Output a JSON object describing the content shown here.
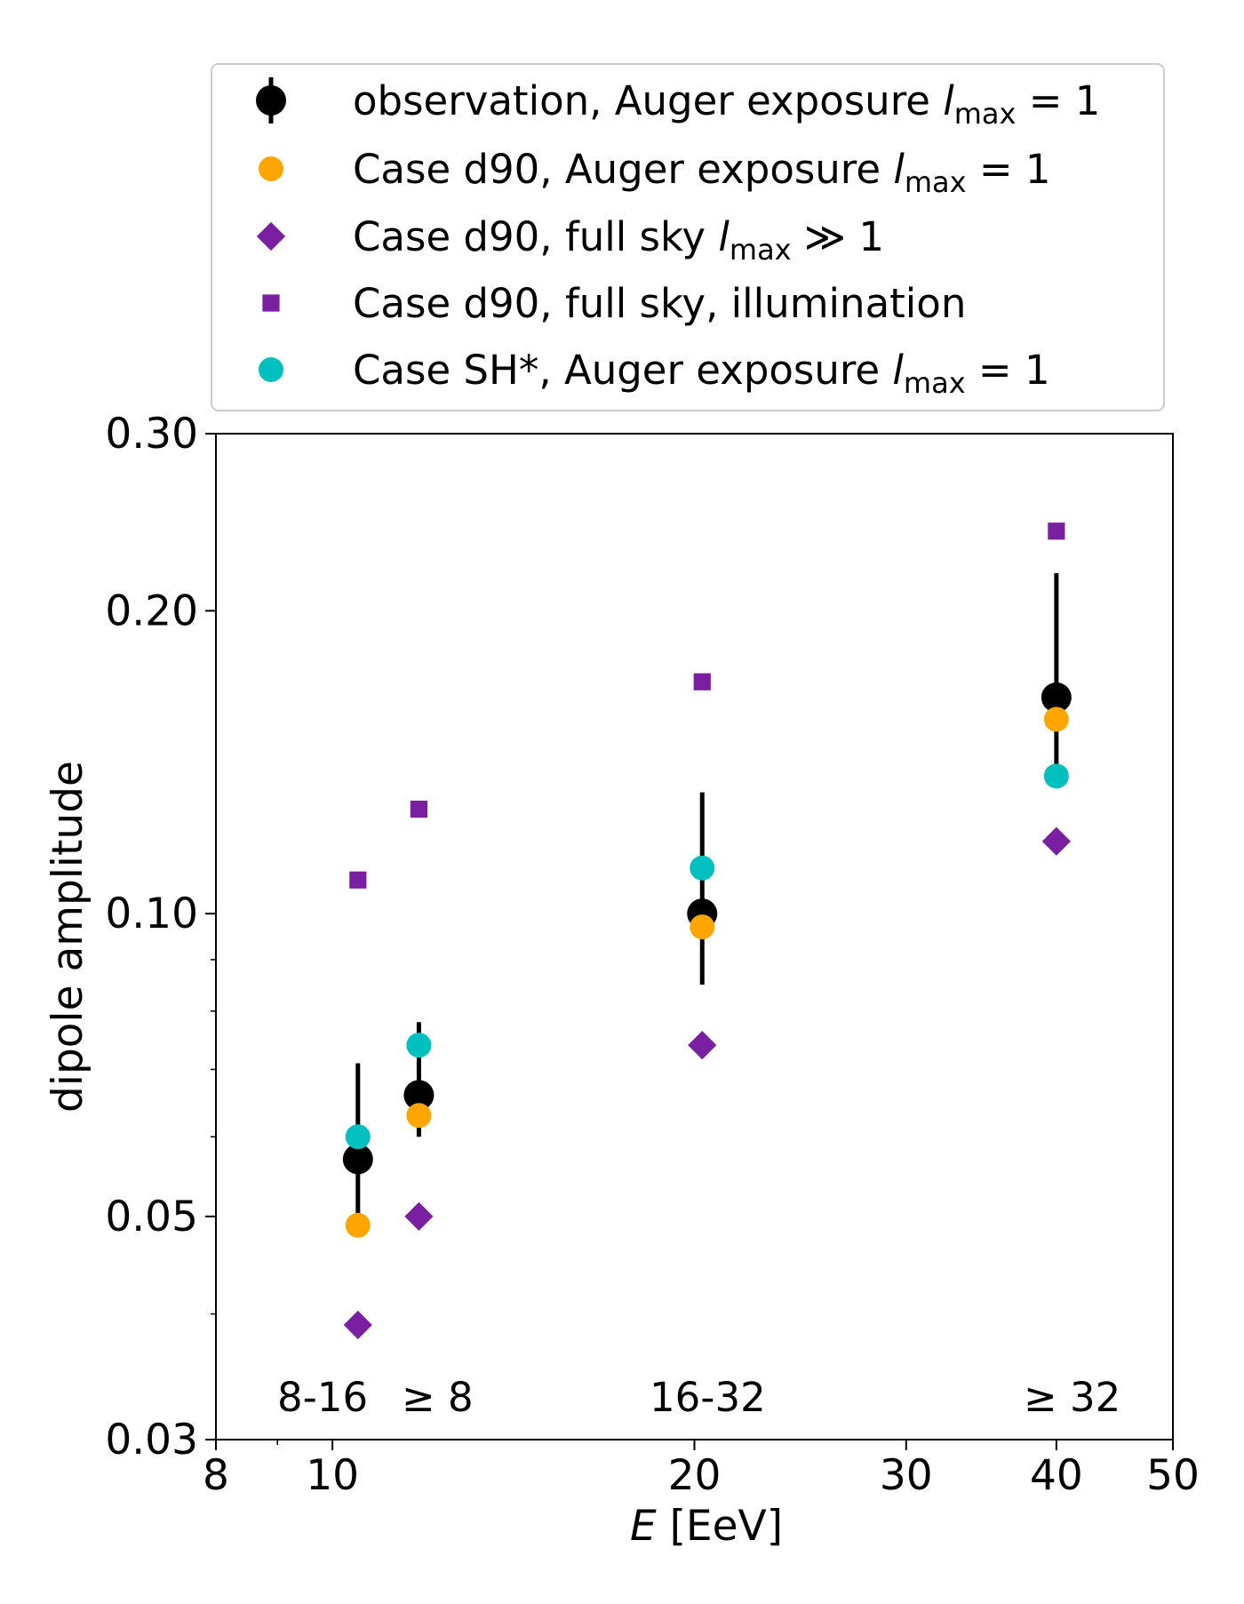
{
  "chart_data": {
    "type": "scatter",
    "title": "",
    "xlabel": {
      "var": "E",
      "unit": " [EeV]"
    },
    "ylabel": "dipole amplitude",
    "xscale": "log",
    "yscale": "log",
    "xlim": [
      8,
      50
    ],
    "ylim": [
      0.03,
      0.3
    ],
    "xticks": [
      8,
      10,
      20,
      30,
      40,
      50
    ],
    "xtick_labels": [
      "8",
      "10",
      "20",
      "30",
      "40",
      "50"
    ],
    "yticks": [
      0.03,
      0.05,
      0.1,
      0.2,
      0.3
    ],
    "ytick_labels": [
      "0.03",
      "0.05",
      "0.10",
      "0.20",
      "0.30"
    ],
    "y_minor_ticks": [
      0.04,
      0.06,
      0.07,
      0.08,
      0.09
    ],
    "x_minor_ticks": [
      9
    ],
    "grid": false,
    "legend_position": "top (above plot)",
    "energy_bins": [
      "8-16",
      "≥ 8",
      "16-32",
      "≥ 32"
    ],
    "series": [
      {
        "name": "observation, Auger exposure",
        "lmax_suffix": "= 1",
        "marker": "circle-errorbar",
        "color": "#000000",
        "x": [
          10.5,
          11.8,
          20.3,
          40.0
        ],
        "y": [
          0.057,
          0.066,
          0.1,
          0.164
        ],
        "yerr_low": [
          0.05,
          0.06,
          0.085,
          0.135
        ],
        "yerr_high": [
          0.071,
          0.078,
          0.132,
          0.218
        ]
      },
      {
        "name": "Case d90, Auger exposure",
        "lmax_suffix": "= 1",
        "marker": "circle",
        "color": "#FFA500",
        "x": [
          10.5,
          11.8,
          20.3,
          40.0
        ],
        "y": [
          0.049,
          0.063,
          0.097,
          0.156
        ]
      },
      {
        "name": "Case d90, full sky",
        "lmax_suffix": "≫ 1",
        "marker": "diamond",
        "color": "#7B1FA2",
        "x": [
          10.5,
          11.8,
          20.3,
          40.0
        ],
        "y": [
          0.039,
          0.05,
          0.074,
          0.118
        ]
      },
      {
        "name": "Case d90, full sky, illumination",
        "lmax_suffix": "",
        "marker": "square",
        "color": "#7B1FA2",
        "x": [
          10.5,
          11.8,
          20.3,
          40.0
        ],
        "y": [
          0.108,
          0.127,
          0.17,
          0.24
        ]
      },
      {
        "name": "Case SH*, Auger exposure",
        "lmax_suffix": "= 1",
        "marker": "circle",
        "color": "#00BFBF",
        "x": [
          10.5,
          11.8,
          20.3,
          40.0
        ],
        "y": [
          0.06,
          0.074,
          0.111,
          0.137
        ]
      }
    ]
  }
}
